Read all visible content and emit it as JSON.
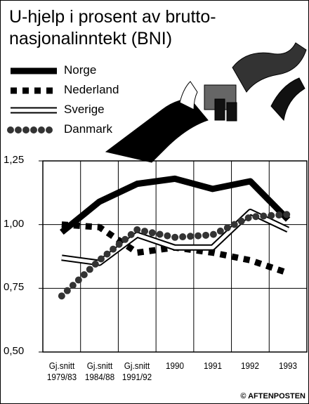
{
  "chart_data": {
    "type": "line",
    "title": "U-hjelp i prosent av brutto-\nnasjonalinntekt (BNI)",
    "categories": [
      "Gj.snitt\n1979/83",
      "Gj.snitt\n1984/88",
      "Gj.snitt\n1991/92",
      "1990",
      "1991",
      "1992",
      "1993"
    ],
    "series": [
      {
        "name": "Norge",
        "color": "#000000",
        "style": "solid",
        "values": [
          0.97,
          1.09,
          1.16,
          1.18,
          1.14,
          1.17,
          1.02
        ]
      },
      {
        "name": "Nederland",
        "color": "#000000",
        "style": "dashed",
        "values": [
          1.0,
          0.99,
          0.89,
          0.91,
          0.89,
          0.86,
          0.81
        ]
      },
      {
        "name": "Sverige",
        "color": "#000000",
        "style": "outline",
        "values": [
          0.87,
          0.85,
          0.96,
          0.91,
          0.91,
          1.05,
          0.98
        ]
      },
      {
        "name": "Danmark",
        "color": "#333333",
        "style": "dotted",
        "values": [
          0.72,
          0.86,
          0.98,
          0.95,
          0.96,
          1.03,
          1.04
        ]
      }
    ],
    "ylim": [
      0.5,
      1.25
    ],
    "yticks": [
      {
        "value": 0.5,
        "label": "0,50"
      },
      {
        "value": 0.75,
        "label": "0,75"
      },
      {
        "value": 1.0,
        "label": "1,00"
      },
      {
        "value": 1.25,
        "label": "1,25"
      }
    ],
    "grid": true,
    "source": "© AFTENPOSTEN"
  }
}
